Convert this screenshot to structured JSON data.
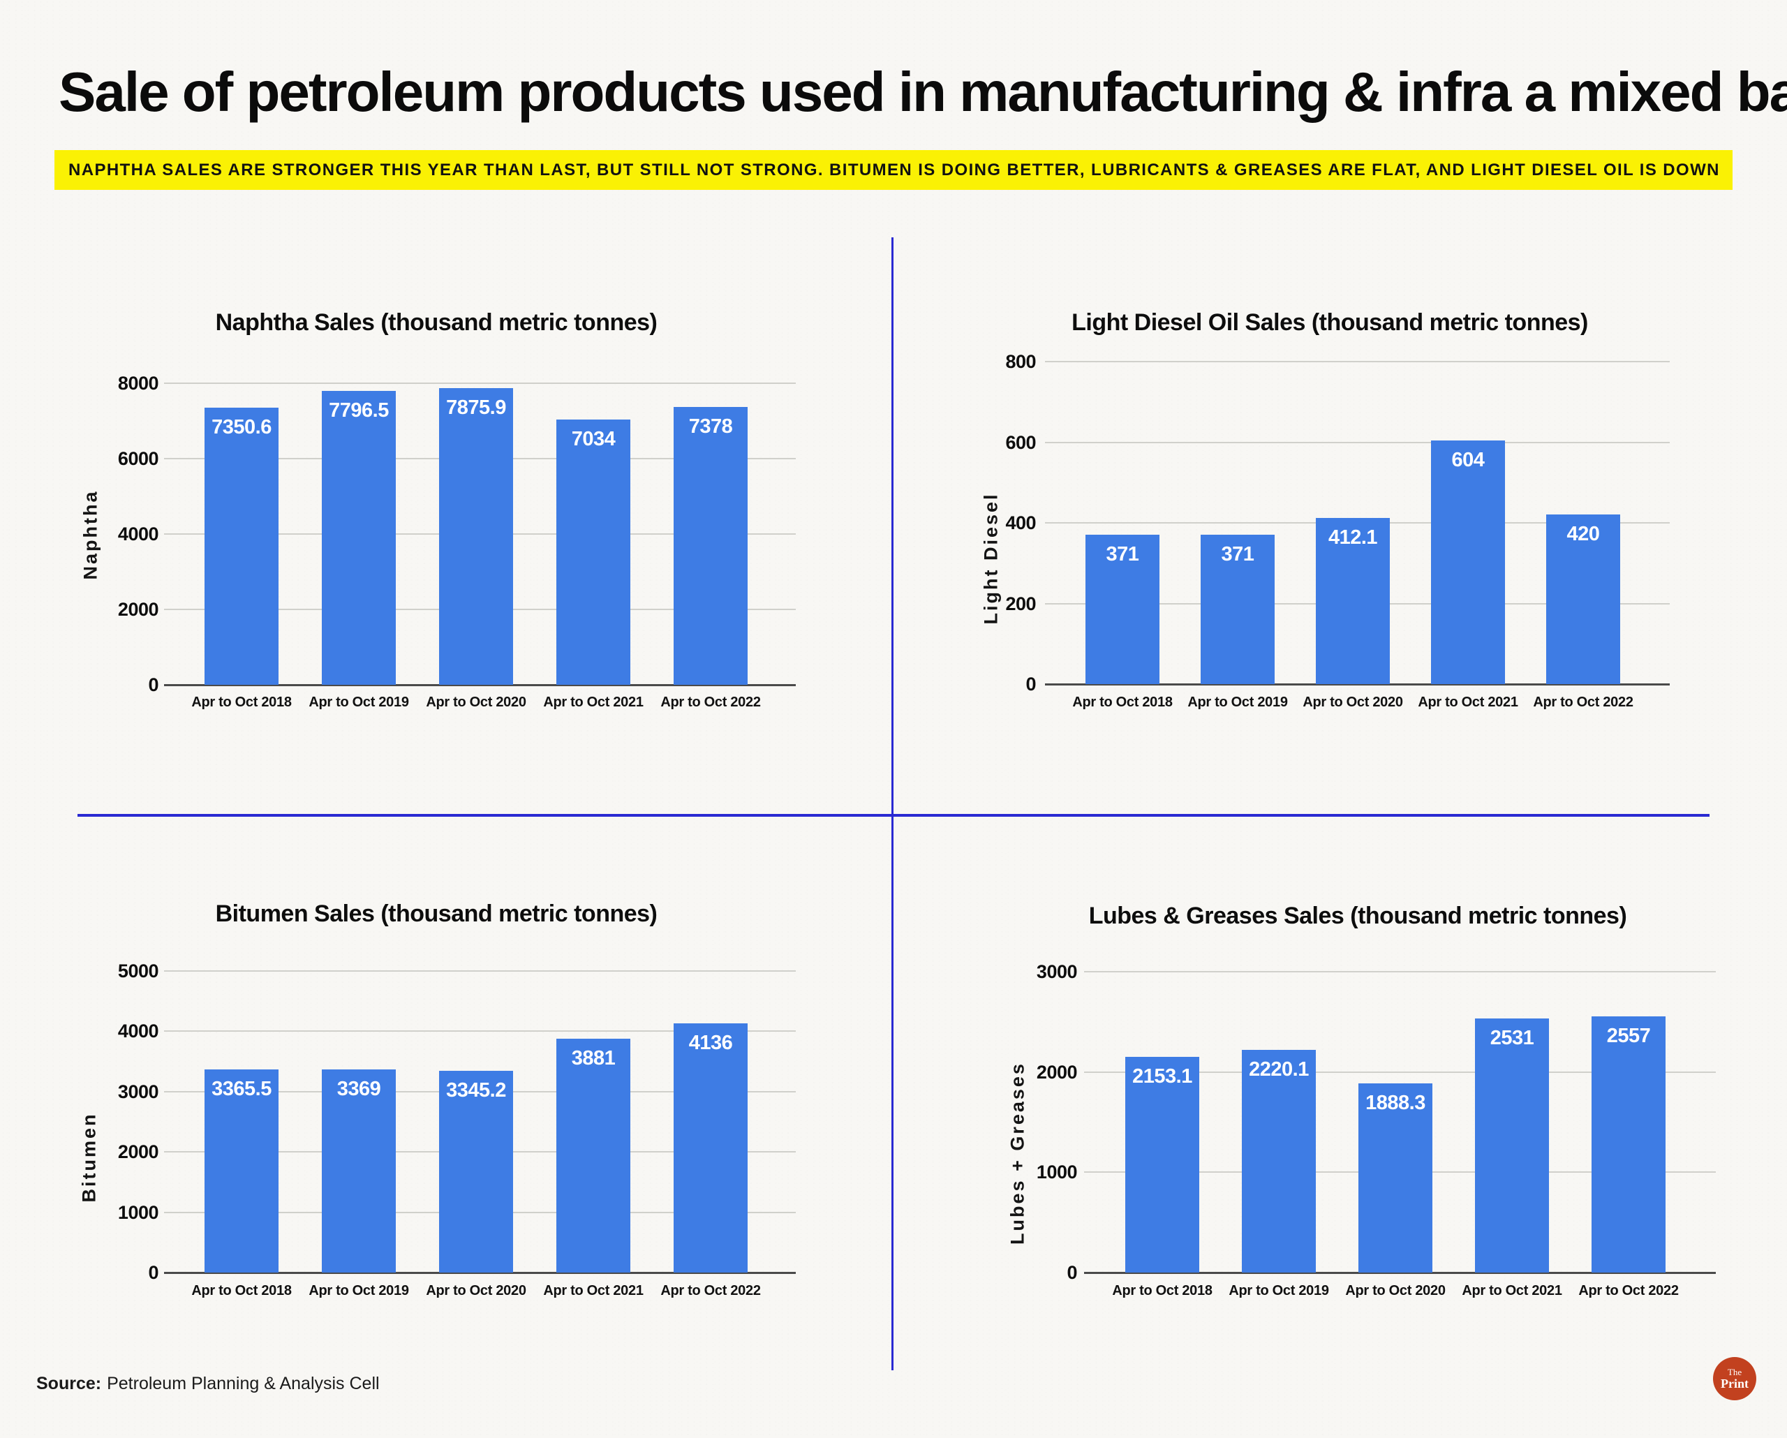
{
  "page": {
    "title": "Sale of petroleum products used in manufacturing & infra a mixed bag",
    "subtitle": "NAPHTHA SALES ARE STRONGER THIS YEAR THAN LAST, BUT STILL NOT STRONG. BITUMEN IS DOING BETTER, LUBRICANTS & GREASES ARE FLAT, AND LIGHT DIESEL OIL IS DOWN",
    "source": {
      "label": "Source:",
      "text": "Petroleum Planning & Analysis Cell"
    },
    "logo": {
      "top": "The",
      "bottom": "Print"
    }
  },
  "colors": {
    "bar": "#3E7CE4",
    "bar_label": "#FFFFFF",
    "subtitle_bg": "#FAF104",
    "divider": "#2A2AD2",
    "gridline": "#D0D0CB",
    "axis": "#4A4A4A",
    "logo_bg": "#C2411F"
  },
  "chart_data": [
    {
      "type": "bar",
      "title": "Naphtha Sales (thousand metric tonnes)",
      "xlabel": "",
      "ylabel": "Naphtha",
      "categories": [
        "Apr to Oct 2018",
        "Apr to Oct 2019",
        "Apr to Oct 2020",
        "Apr to Oct 2021",
        "Apr to Oct 2022"
      ],
      "values": [
        7350.6,
        7796.5,
        7875.9,
        7034,
        7378
      ],
      "ylim": [
        0,
        8000
      ],
      "ytick_step": 2000,
      "grid": true,
      "legend": "none",
      "value_labels": "inside-top"
    },
    {
      "type": "bar",
      "title": "Light Diesel Oil Sales (thousand metric tonnes)",
      "xlabel": "",
      "ylabel": "Light Diesel",
      "categories": [
        "Apr to Oct 2018",
        "Apr to Oct 2019",
        "Apr to Oct 2020",
        "Apr to Oct 2021",
        "Apr to Oct 2022"
      ],
      "values": [
        371,
        371,
        412.1,
        604,
        420
      ],
      "ylim": [
        0,
        800
      ],
      "ytick_step": 200,
      "grid": true,
      "legend": "none",
      "value_labels": "inside-top"
    },
    {
      "type": "bar",
      "title": "Bitumen Sales (thousand metric tonnes)",
      "xlabel": "",
      "ylabel": "Bitumen",
      "categories": [
        "Apr to Oct 2018",
        "Apr to Oct 2019",
        "Apr to Oct 2020",
        "Apr to Oct 2021",
        "Apr to Oct 2022"
      ],
      "values": [
        3365.5,
        3369,
        3345.2,
        3881,
        4136
      ],
      "ylim": [
        0,
        5000
      ],
      "ytick_step": 1000,
      "grid": true,
      "legend": "none",
      "value_labels": "inside-top"
    },
    {
      "type": "bar",
      "title": "Lubes & Greases Sales (thousand metric tonnes)",
      "xlabel": "",
      "ylabel": "Lubes + Greases",
      "categories": [
        "Apr to Oct 2018",
        "Apr to Oct 2019",
        "Apr to Oct 2020",
        "Apr to Oct 2021",
        "Apr to Oct 2022"
      ],
      "values": [
        2153.1,
        2220.1,
        1888.3,
        2531,
        2557
      ],
      "ylim": [
        0,
        3000
      ],
      "ytick_step": 1000,
      "grid": true,
      "legend": "none",
      "value_labels": "inside-top"
    }
  ]
}
